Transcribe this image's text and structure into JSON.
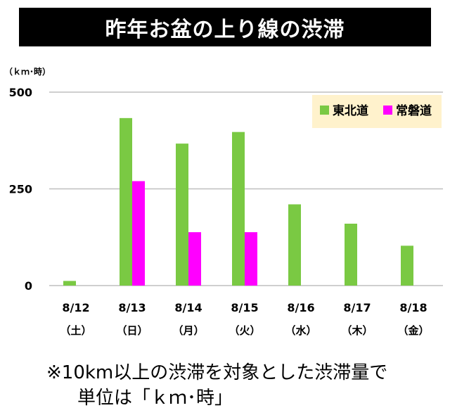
{
  "title": "昨年お盆の上り線の渋滞",
  "note": {
    "line1": "※10km以上の渋滞を対象とした渋滞量で",
    "line2": "単位は「ｋｍ･時」"
  },
  "colors": {
    "tohoku": "#7ac943",
    "joban": "#ff00ff",
    "legend_bg": "#fff2cc",
    "axis": "#bfbfbf"
  },
  "chart_data": {
    "type": "bar",
    "title": "昨年お盆の上り線の渋滞",
    "ylabel": "（ｋｍ･時）",
    "ylim": [
      0,
      500
    ],
    "yticks": [
      0,
      250,
      500
    ],
    "yticklabels": [
      "0",
      "250",
      "500"
    ],
    "categories": [
      "8/12",
      "8/13",
      "8/14",
      "8/15",
      "8/16",
      "8/17",
      "8/18"
    ],
    "weekdays": [
      "（土）",
      "（日）",
      "（月）",
      "（火）",
      "（水）",
      "（木）",
      "（金）"
    ],
    "legend_position": "top-right",
    "series": [
      {
        "name": "東北道",
        "color": "#7ac943",
        "values": [
          12,
          433,
          367,
          397,
          210,
          160,
          103
        ]
      },
      {
        "name": "常磐道",
        "color": "#ff00ff",
        "values": [
          0,
          270,
          138,
          138,
          0,
          0,
          0
        ]
      }
    ]
  }
}
